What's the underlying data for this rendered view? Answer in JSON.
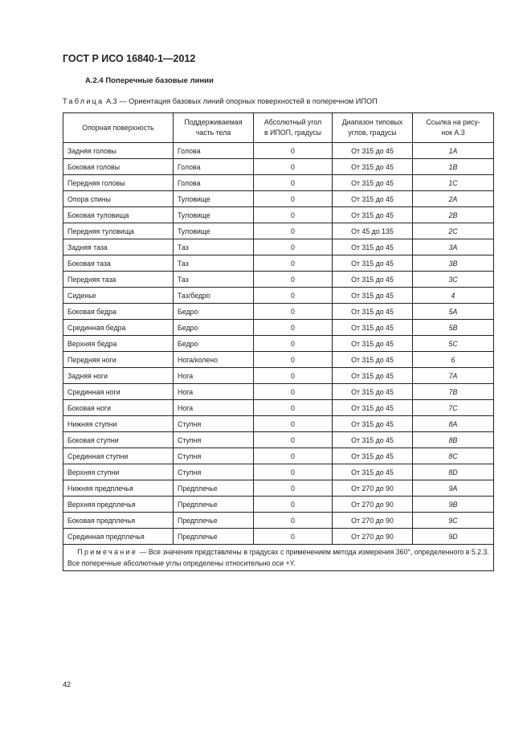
{
  "header": {
    "doc_title": "ГОСТ Р ИСО 16840-1—2012"
  },
  "section": {
    "title": "А.2.4  Поперечные базовые линии"
  },
  "caption": {
    "prefix": "Таблица",
    "text": " А.3 — Ориентация базовых линий опорных поверхностей в поперечном ИПОП"
  },
  "table": {
    "headers": [
      "Опорная поверхность",
      "Поддерживаемая часть тела",
      "Абсолютный угол в ИПОП, градусы",
      "Диапазон типовых углов, градусы",
      "Ссылка на рисунок А.3"
    ],
    "header_lines": [
      [
        "Опорная поверхность"
      ],
      [
        "Поддерживаемая",
        "часть тела"
      ],
      [
        "Абсолютный угол",
        "в ИПОП, градусы"
      ],
      [
        "Диапазон типовых",
        "углов, градусы"
      ],
      [
        "Ссылка на рису-",
        "нок А.3"
      ]
    ],
    "rows": [
      [
        "Задняя головы",
        "Голова",
        "0",
        "От 315 до 45",
        "1А"
      ],
      [
        "Боковая головы",
        "Голова",
        "0",
        "От 315 до 45",
        "1В"
      ],
      [
        "Передняя головы",
        "Голова",
        "0",
        "От 315 до 45",
        "1С"
      ],
      [
        "Опора спины",
        "Туловище",
        "0",
        "От 315 до 45",
        "2А"
      ],
      [
        "Боковая туловища",
        "Туловище",
        "0",
        "От 315 до 45",
        "2В"
      ],
      [
        "Передняя туловища",
        "Туловище",
        "0",
        "От 45 до 135",
        "2С"
      ],
      [
        "Задняя таза",
        "Таз",
        "0",
        "От 315 до 45",
        "3А"
      ],
      [
        "Боковая таза",
        "Таз",
        "0",
        "От 315 до 45",
        "3В"
      ],
      [
        "Передняя таза",
        "Таз",
        "0",
        "От 315 до 45",
        "3С"
      ],
      [
        "Сиденье",
        "Таз/бедро",
        "0",
        "От 315 до 45",
        "4"
      ],
      [
        "Боковая бедра",
        "Бедро",
        "0",
        "От 315 до 45",
        "5А"
      ],
      [
        "Срединная бедра",
        "Бедро",
        "0",
        "От 315 до 45",
        "5В"
      ],
      [
        "Верхняя бедра",
        "Бедро",
        "0",
        "От 315 до 45",
        "5С"
      ],
      [
        "Передняя ноги",
        "Нога/колено",
        "0",
        "От 315 до 45",
        "6"
      ],
      [
        "Задняя ноги",
        "Нога",
        "0",
        "От 315 до 45",
        "7А"
      ],
      [
        "Срединная ноги",
        "Нога",
        "0",
        "От 315 до 45",
        "7В"
      ],
      [
        "Боковая ноги",
        "Нога",
        "0",
        "От 315 до 45",
        "7С"
      ],
      [
        "Нижняя ступни",
        "Ступня",
        "0",
        "От 315 до 45",
        "8А"
      ],
      [
        "Боковая ступни",
        "Ступня",
        "0",
        "От 315 до 45",
        "8В"
      ],
      [
        "Срединная ступни",
        "Ступня",
        "0",
        "От 315 до 45",
        "8С"
      ],
      [
        "Верхняя ступни",
        "Ступня",
        "0",
        "От 315 до 45",
        "8D"
      ],
      [
        "Нижняя предплечья",
        "Предплечье",
        "0",
        "От 270 до 90",
        "9А"
      ],
      [
        "Верхняя предплечья",
        "Предплечье",
        "0",
        "От 270 до 90",
        "9В"
      ],
      [
        "Боковая предплечья",
        "Предплечье",
        "0",
        "От 270 до 90",
        "9С"
      ],
      [
        "Срединная предплечья",
        "Предплечье",
        "0",
        "От 270 до 90",
        "9D"
      ]
    ],
    "note": {
      "prefix": "Примечание",
      "text": " — Все значения представлены в градусах с применением метода измерения 360°, определенного в 5.2.3. Все поперечные абсолютные углы определены относительно оси +Y."
    }
  },
  "footer": {
    "page_number": "42"
  }
}
